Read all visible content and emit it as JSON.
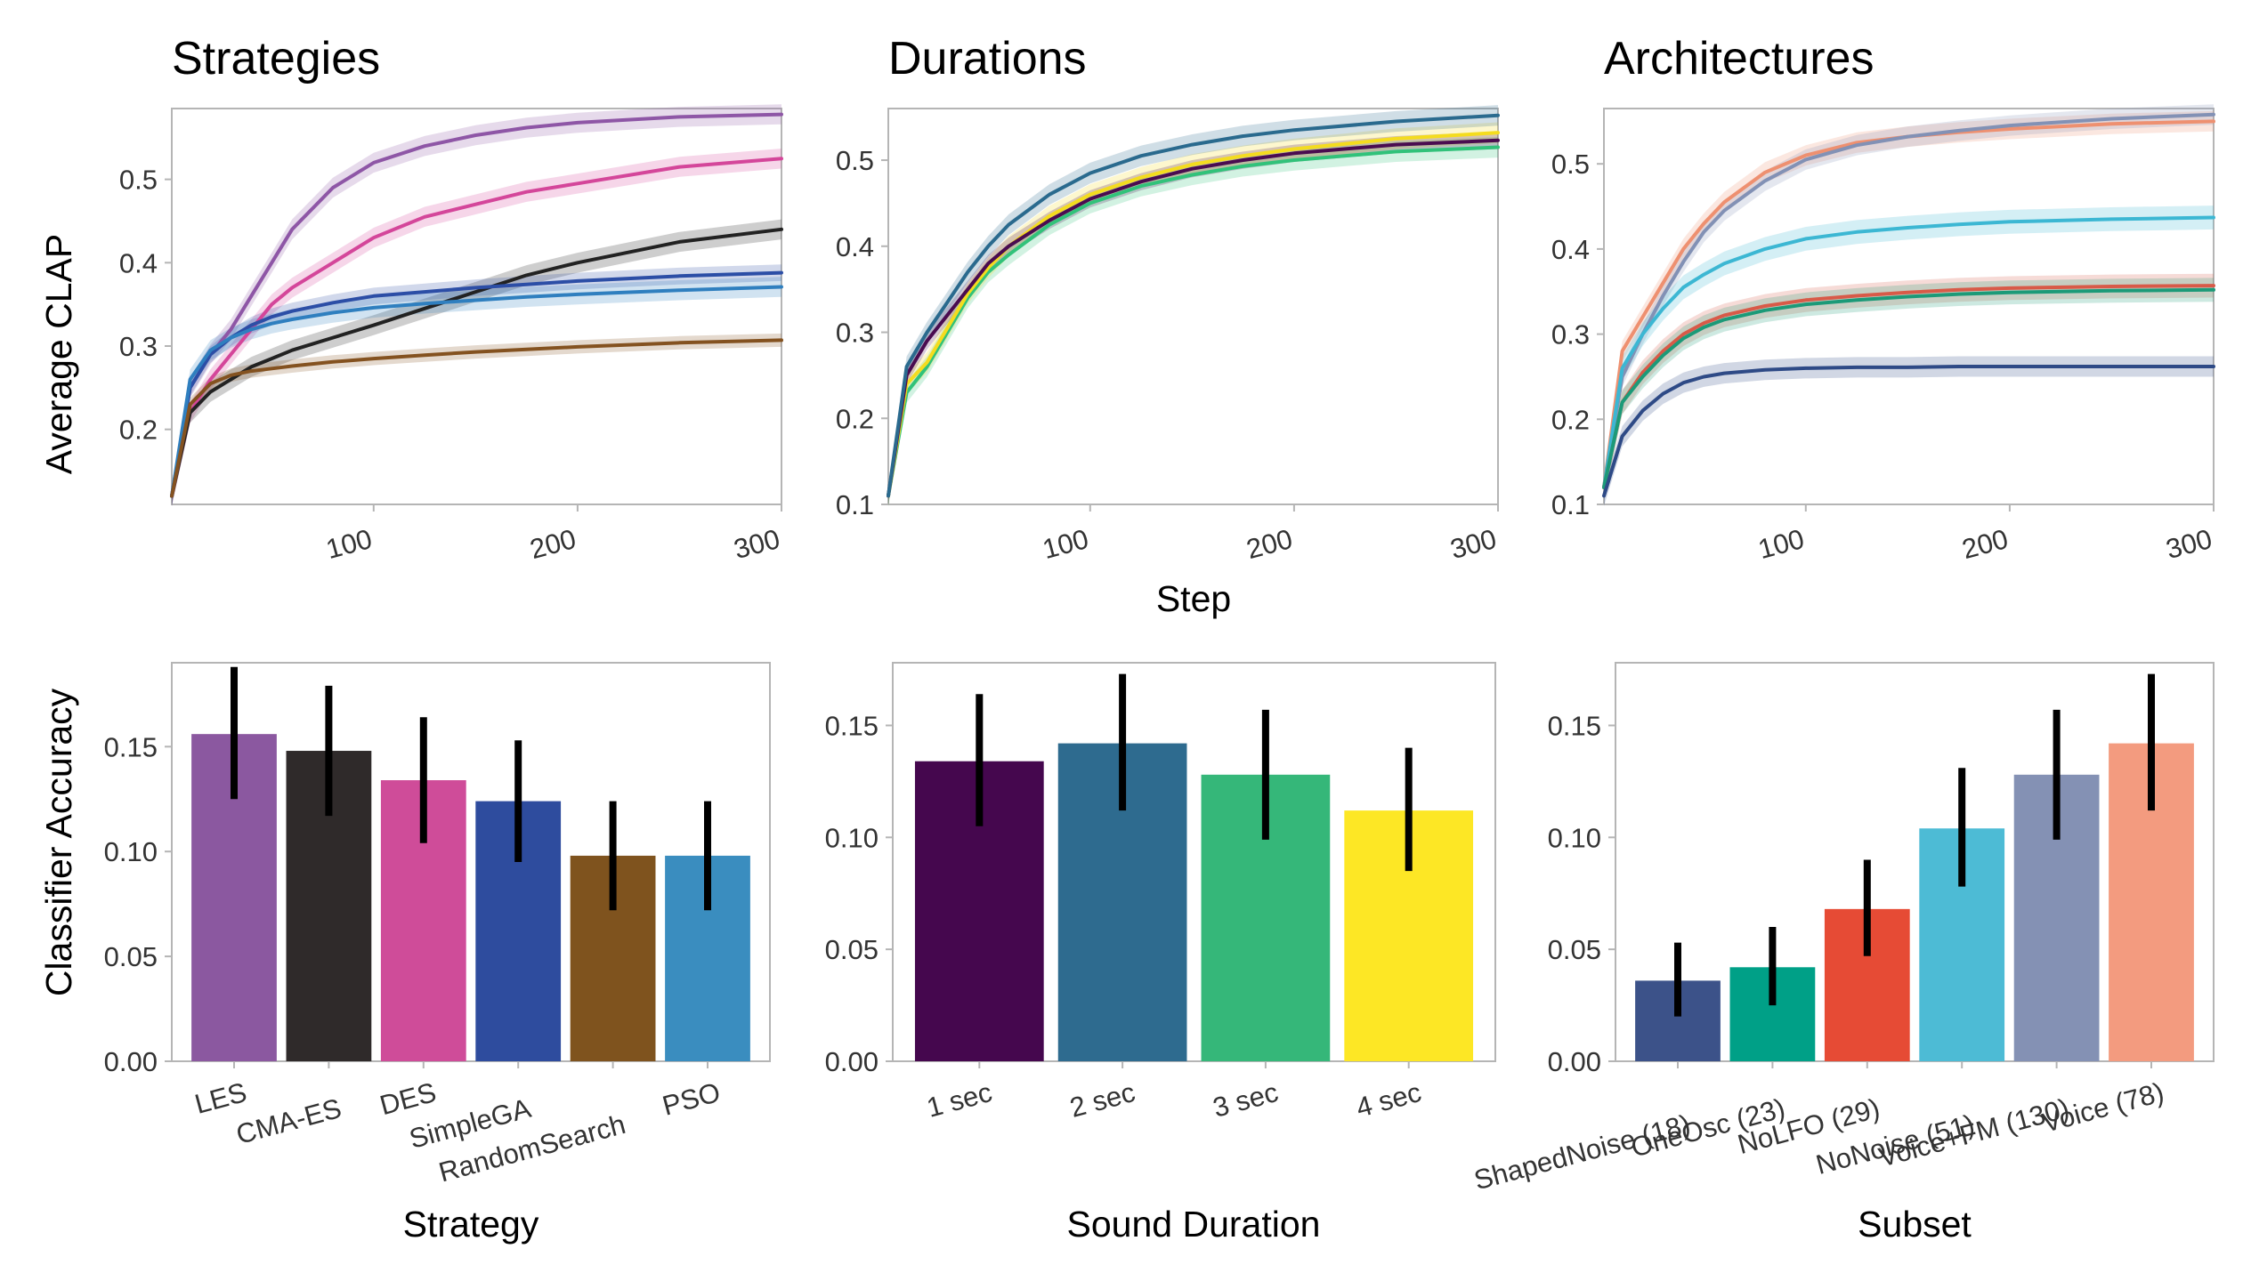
{
  "chart_data": [
    {
      "type": "line",
      "title": "Strategies",
      "xlabel": "",
      "ylabel": "Average CLAP",
      "xlim": [
        1,
        300
      ],
      "ylim": [
        0.11,
        0.585
      ],
      "xticks": [
        "100",
        "200",
        "300"
      ],
      "yticks": [
        "0.2",
        "0.3",
        "0.4",
        "0.5"
      ],
      "series": [
        {
          "color": "#8e56a6",
          "band": 0.012,
          "x": [
            1,
            10,
            20,
            30,
            40,
            50,
            60,
            80,
            100,
            125,
            150,
            175,
            200,
            250,
            300
          ],
          "y": [
            0.12,
            0.25,
            0.29,
            0.32,
            0.36,
            0.4,
            0.44,
            0.49,
            0.52,
            0.54,
            0.553,
            0.562,
            0.568,
            0.575,
            0.578
          ]
        },
        {
          "color": "#d4469a",
          "band": 0.012,
          "x": [
            1,
            10,
            20,
            30,
            40,
            50,
            60,
            80,
            100,
            125,
            150,
            175,
            200,
            250,
            300
          ],
          "y": [
            0.12,
            0.22,
            0.26,
            0.29,
            0.32,
            0.35,
            0.37,
            0.4,
            0.43,
            0.455,
            0.47,
            0.485,
            0.495,
            0.515,
            0.525
          ]
        },
        {
          "color": "#222222",
          "band": 0.012,
          "x": [
            1,
            10,
            20,
            30,
            40,
            50,
            60,
            80,
            100,
            125,
            150,
            175,
            200,
            250,
            300
          ],
          "y": [
            0.12,
            0.22,
            0.245,
            0.26,
            0.275,
            0.285,
            0.295,
            0.31,
            0.325,
            0.345,
            0.365,
            0.385,
            0.4,
            0.425,
            0.44
          ]
        },
        {
          "color": "#2c4ea6",
          "band": 0.01,
          "x": [
            1,
            10,
            20,
            30,
            40,
            50,
            60,
            80,
            100,
            125,
            150,
            175,
            200,
            250,
            300
          ],
          "y": [
            0.12,
            0.25,
            0.29,
            0.31,
            0.325,
            0.335,
            0.342,
            0.352,
            0.36,
            0.365,
            0.37,
            0.374,
            0.378,
            0.384,
            0.388
          ]
        },
        {
          "color": "#2f7fbf",
          "band": 0.012,
          "x": [
            1,
            10,
            20,
            30,
            40,
            50,
            60,
            80,
            100,
            125,
            150,
            175,
            200,
            250,
            300
          ],
          "y": [
            0.12,
            0.26,
            0.295,
            0.31,
            0.32,
            0.327,
            0.332,
            0.34,
            0.346,
            0.351,
            0.355,
            0.359,
            0.362,
            0.367,
            0.371
          ]
        },
        {
          "color": "#845220",
          "band": 0.008,
          "x": [
            1,
            10,
            20,
            30,
            40,
            50,
            60,
            80,
            100,
            125,
            150,
            175,
            200,
            250,
            300
          ],
          "y": [
            0.12,
            0.23,
            0.255,
            0.265,
            0.27,
            0.273,
            0.276,
            0.281,
            0.285,
            0.289,
            0.293,
            0.296,
            0.299,
            0.304,
            0.307
          ]
        }
      ]
    },
    {
      "type": "line",
      "title": "Durations",
      "xlabel": "Step",
      "ylabel": "",
      "xlim": [
        1,
        300
      ],
      "ylim": [
        0.1,
        0.56
      ],
      "xticks": [
        "100",
        "200",
        "300"
      ],
      "yticks": [
        "0.1",
        "0.2",
        "0.3",
        "0.4",
        "0.5"
      ],
      "series": [
        {
          "color": "#31c27a",
          "band": 0.012,
          "x": [
            1,
            10,
            20,
            30,
            40,
            50,
            60,
            80,
            100,
            125,
            150,
            175,
            200,
            250,
            300
          ],
          "y": [
            0.11,
            0.23,
            0.26,
            0.3,
            0.34,
            0.37,
            0.39,
            0.425,
            0.45,
            0.47,
            0.483,
            0.493,
            0.5,
            0.51,
            0.515
          ]
        },
        {
          "color": "#f4dc1e",
          "band": 0.012,
          "x": [
            1,
            10,
            20,
            30,
            40,
            50,
            60,
            80,
            100,
            125,
            150,
            175,
            200,
            250,
            300
          ],
          "y": [
            0.11,
            0.24,
            0.265,
            0.305,
            0.345,
            0.375,
            0.4,
            0.435,
            0.46,
            0.48,
            0.495,
            0.505,
            0.513,
            0.525,
            0.532
          ]
        },
        {
          "color": "#4a0c50",
          "band": 0.01,
          "x": [
            1,
            10,
            20,
            30,
            40,
            50,
            60,
            80,
            100,
            125,
            150,
            175,
            200,
            250,
            300
          ],
          "y": [
            0.11,
            0.25,
            0.29,
            0.32,
            0.35,
            0.38,
            0.4,
            0.43,
            0.455,
            0.475,
            0.49,
            0.5,
            0.508,
            0.518,
            0.523
          ]
        },
        {
          "color": "#2a6a8e",
          "band": 0.012,
          "x": [
            1,
            10,
            20,
            30,
            40,
            50,
            60,
            80,
            100,
            125,
            150,
            175,
            200,
            250,
            300
          ],
          "y": [
            0.11,
            0.26,
            0.3,
            0.335,
            0.37,
            0.4,
            0.425,
            0.46,
            0.485,
            0.505,
            0.518,
            0.528,
            0.535,
            0.545,
            0.552
          ]
        }
      ]
    },
    {
      "type": "line",
      "title": "Architectures",
      "xlabel": "",
      "ylabel": "",
      "xlim": [
        1,
        300
      ],
      "ylim": [
        0.1,
        0.565
      ],
      "xticks": [
        "100",
        "200",
        "300"
      ],
      "yticks": [
        "0.1",
        "0.2",
        "0.3",
        "0.4",
        "0.5"
      ],
      "series": [
        {
          "color": "#ee9070",
          "band": 0.012,
          "x": [
            1,
            10,
            20,
            30,
            40,
            50,
            60,
            80,
            100,
            125,
            150,
            175,
            200,
            250,
            300
          ],
          "y": [
            0.12,
            0.28,
            0.32,
            0.36,
            0.4,
            0.43,
            0.455,
            0.49,
            0.51,
            0.525,
            0.532,
            0.537,
            0.541,
            0.547,
            0.55
          ]
        },
        {
          "color": "#8291b5",
          "band": 0.012,
          "x": [
            1,
            10,
            20,
            30,
            40,
            50,
            60,
            80,
            100,
            125,
            150,
            175,
            200,
            250,
            300
          ],
          "y": [
            0.12,
            0.25,
            0.3,
            0.345,
            0.385,
            0.42,
            0.445,
            0.48,
            0.505,
            0.522,
            0.532,
            0.539,
            0.545,
            0.553,
            0.558
          ]
        },
        {
          "color": "#3cb7d3",
          "band": 0.014,
          "x": [
            1,
            10,
            20,
            30,
            40,
            50,
            60,
            80,
            100,
            125,
            150,
            175,
            200,
            250,
            300
          ],
          "y": [
            0.12,
            0.26,
            0.3,
            0.33,
            0.355,
            0.37,
            0.383,
            0.4,
            0.412,
            0.42,
            0.425,
            0.429,
            0.432,
            0.435,
            0.437
          ]
        },
        {
          "color": "#d85a48",
          "band": 0.014,
          "x": [
            1,
            10,
            20,
            30,
            40,
            50,
            60,
            80,
            100,
            125,
            150,
            175,
            200,
            250,
            300
          ],
          "y": [
            0.12,
            0.22,
            0.255,
            0.28,
            0.3,
            0.313,
            0.322,
            0.333,
            0.34,
            0.345,
            0.349,
            0.352,
            0.354,
            0.356,
            0.357
          ]
        },
        {
          "color": "#1c9a78",
          "band": 0.014,
          "x": [
            1,
            10,
            20,
            30,
            40,
            50,
            60,
            80,
            100,
            125,
            150,
            175,
            200,
            250,
            300
          ],
          "y": [
            0.12,
            0.22,
            0.25,
            0.275,
            0.295,
            0.308,
            0.317,
            0.328,
            0.335,
            0.34,
            0.344,
            0.347,
            0.349,
            0.351,
            0.352
          ]
        },
        {
          "color": "#2e4a86",
          "band": 0.012,
          "x": [
            1,
            10,
            20,
            30,
            40,
            50,
            60,
            80,
            100,
            125,
            150,
            175,
            200,
            250,
            300
          ],
          "y": [
            0.11,
            0.18,
            0.21,
            0.23,
            0.243,
            0.25,
            0.254,
            0.258,
            0.26,
            0.261,
            0.261,
            0.262,
            0.262,
            0.262,
            0.262
          ]
        }
      ]
    },
    {
      "type": "bar",
      "title": "",
      "xlabel": "Strategy",
      "ylabel": "Classifier Accuracy",
      "ylim": [
        0,
        0.19
      ],
      "yticks": [
        "0.00",
        "0.05",
        "0.10",
        "0.15"
      ],
      "categories": [
        "LES",
        "CMA-ES",
        "DES",
        "SimpleGA",
        "RandomSearch",
        "PSO"
      ],
      "values": [
        0.156,
        0.148,
        0.134,
        0.124,
        0.098,
        0.098
      ],
      "err_low": [
        0.125,
        0.117,
        0.104,
        0.095,
        0.072,
        0.072
      ],
      "err_high": [
        0.188,
        0.179,
        0.164,
        0.153,
        0.124,
        0.124
      ],
      "colors": [
        "#8b58a0",
        "#2f2a2a",
        "#cf4c99",
        "#2e4c9e",
        "#7f531e",
        "#3a8dbf"
      ]
    },
    {
      "type": "bar",
      "title": "",
      "xlabel": "Sound Duration",
      "ylabel": "",
      "ylim": [
        0,
        0.178
      ],
      "yticks": [
        "0.00",
        "0.05",
        "0.10",
        "0.15"
      ],
      "categories": [
        "1 sec",
        "2 sec",
        "3 sec",
        "4 sec"
      ],
      "values": [
        0.134,
        0.142,
        0.128,
        0.112
      ],
      "err_low": [
        0.105,
        0.112,
        0.099,
        0.085
      ],
      "err_high": [
        0.164,
        0.173,
        0.157,
        0.14
      ],
      "colors": [
        "#45074e",
        "#2e6b8f",
        "#35b779",
        "#fde725"
      ]
    },
    {
      "type": "bar",
      "title": "",
      "xlabel": "Subset",
      "ylabel": "",
      "ylim": [
        0,
        0.178
      ],
      "yticks": [
        "0.00",
        "0.05",
        "0.10",
        "0.15"
      ],
      "categories": [
        "ShapedNoise (18)",
        "OneOsc (23)",
        "NoLFO (29)",
        "NoNoise (51)",
        "Voice+FM (130)",
        "Voice (78)"
      ],
      "values": [
        0.036,
        0.042,
        0.068,
        0.104,
        0.128,
        0.142
      ],
      "err_low": [
        0.02,
        0.025,
        0.047,
        0.078,
        0.099,
        0.112
      ],
      "err_high": [
        0.053,
        0.06,
        0.09,
        0.131,
        0.157,
        0.173
      ],
      "colors": [
        "#3c5289",
        "#00a087",
        "#e64b35",
        "#4dbbd5",
        "#8491b4",
        "#f39b7f"
      ]
    }
  ]
}
